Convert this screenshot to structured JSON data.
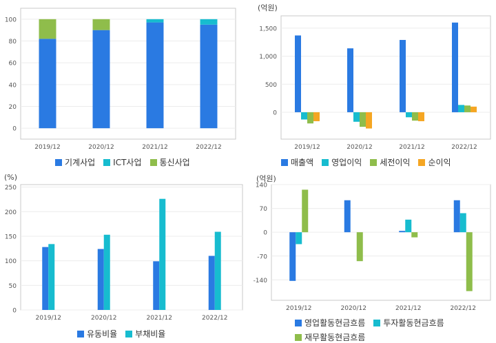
{
  "chart_data": [
    {
      "type": "bar",
      "stacked": true,
      "unit": "",
      "categories": [
        "2019/12",
        "2020/12",
        "2021/12",
        "2022/12"
      ],
      "series": [
        {
          "name": "기계사업",
          "color": "#2a7ae2",
          "values": [
            82,
            90,
            97,
            95
          ]
        },
        {
          "name": "ICT사업",
          "color": "#17bccf",
          "values": [
            0,
            0,
            3,
            5
          ]
        },
        {
          "name": "통신사업",
          "color": "#8fbd4b",
          "values": [
            18,
            10,
            0,
            0
          ]
        }
      ],
      "yticks": [
        0,
        20,
        40,
        60,
        80,
        100
      ],
      "ylim": [
        -10,
        110
      ]
    },
    {
      "type": "bar",
      "unit": "(억원)",
      "categories": [
        "2019/12",
        "2020/12",
        "2021/12",
        "2022/12"
      ],
      "series": [
        {
          "name": "매출액",
          "color": "#2a7ae2",
          "values": [
            1370,
            1140,
            1290,
            1600
          ]
        },
        {
          "name": "영업이익",
          "color": "#17bccf",
          "values": [
            -130,
            -170,
            -90,
            130
          ]
        },
        {
          "name": "세전이익",
          "color": "#8fbd4b",
          "values": [
            -200,
            -260,
            -150,
            120
          ]
        },
        {
          "name": "순이익",
          "color": "#f5a623",
          "values": [
            -160,
            -290,
            -160,
            100
          ]
        }
      ],
      "yticks": [
        0,
        500,
        1000,
        1500
      ],
      "ytick_labels": [
        "0",
        "500",
        "1,000",
        "1,500"
      ],
      "ylim": [
        -480,
        1720
      ]
    },
    {
      "type": "bar",
      "unit": "(%)",
      "categories": [
        "2019/12",
        "2020/12",
        "2021/12",
        "2022/12"
      ],
      "series": [
        {
          "name": "유동비율",
          "color": "#2a7ae2",
          "values": [
            128,
            124,
            99,
            110
          ]
        },
        {
          "name": "부채비율",
          "color": "#17bccf",
          "values": [
            134,
            153,
            226,
            159
          ]
        }
      ],
      "yticks": [
        0,
        50,
        100,
        150,
        200,
        250
      ],
      "ylim": [
        0,
        255
      ]
    },
    {
      "type": "bar",
      "unit": "(억원)",
      "categories": [
        "2019/12",
        "2020/12",
        "2021/12",
        "2022/12"
      ],
      "series": [
        {
          "name": "영업활동현금흐름",
          "color": "#2a7ae2",
          "values": [
            -143,
            94,
            4,
            94
          ]
        },
        {
          "name": "투자활동현금흐름",
          "color": "#17bccf",
          "values": [
            -35,
            0,
            37,
            56
          ]
        },
        {
          "name": "재무활동현금흐름",
          "color": "#8fbd4b",
          "values": [
            125,
            -85,
            -15,
            -173
          ]
        }
      ],
      "yticks": [
        -140,
        -70,
        0,
        70,
        140
      ],
      "ylim": [
        -200,
        140
      ]
    }
  ]
}
